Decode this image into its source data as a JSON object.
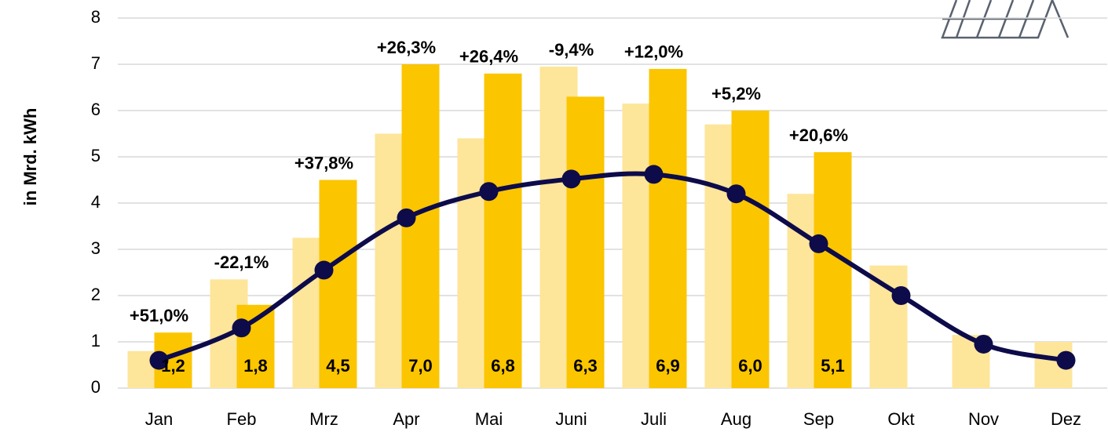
{
  "chart_data": {
    "type": "bar",
    "y_label": "in Mrd. kWh",
    "categories": [
      "Jan",
      "Feb",
      "Mrz",
      "Apr",
      "Mai",
      "Juni",
      "Juli",
      "Aug",
      "Sep",
      "Okt",
      "Nov",
      "Dez"
    ],
    "series": [
      {
        "color": "#fde59a",
        "values": [
          0.8,
          2.35,
          3.25,
          5.5,
          5.4,
          6.95,
          6.15,
          5.7,
          4.2,
          2.65,
          1.15,
          1.0
        ]
      },
      {
        "color": "#fbc500",
        "values": [
          1.2,
          1.8,
          4.5,
          7.0,
          6.8,
          6.3,
          6.9,
          6.0,
          5.1,
          null,
          null,
          null
        ],
        "value_labels": [
          "1,2",
          "1,8",
          "4,5",
          "7,0",
          "6,8",
          "6,3",
          "6,9",
          "6,0",
          "5,1",
          null,
          null,
          null
        ]
      },
      {
        "type": "line",
        "color": "#0d0b4a",
        "values": [
          0.6,
          1.3,
          2.55,
          3.68,
          4.25,
          4.52,
          4.62,
          4.2,
          3.12,
          2.0,
          0.95,
          0.6
        ]
      }
    ],
    "annotations": [
      "+51,0%",
      "-22,1%",
      "+37,8%",
      "+26,3%",
      "+26,4%",
      "-9,4%",
      "+12,0%",
      "+5,2%",
      "+20,6%",
      null,
      null,
      null
    ],
    "ylim": [
      0,
      8
    ],
    "yticks": [
      0,
      1,
      2,
      3,
      4,
      5,
      6,
      7,
      8
    ],
    "grid": true
  }
}
